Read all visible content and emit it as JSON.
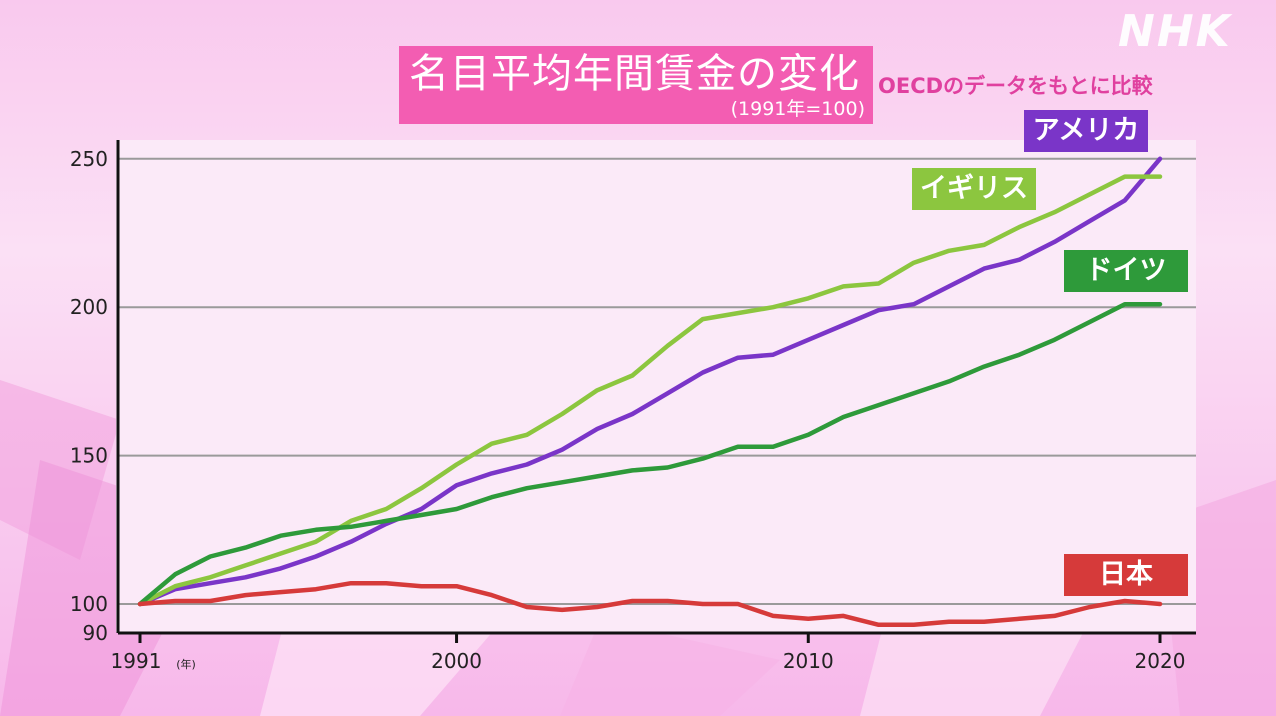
{
  "header": {
    "title": "名目平均年間賃金の変化",
    "subtitle": "(1991年=100)",
    "source": "OECDのデータをもとに比較",
    "logo": "NHK"
  },
  "colors": {
    "title_bg": "#f35db2",
    "usa": "#7a35c8",
    "uk": "#8cc63f",
    "germany": "#2e9a3a",
    "japan": "#d63a3a"
  },
  "chart_data": {
    "type": "line",
    "title": "名目平均年間賃金の変化",
    "subtitle": "(1991年=100)",
    "x_ticks": [
      "1991",
      "2000",
      "2010",
      "2020"
    ],
    "x_unit_label": "(年)",
    "y_ticks": [
      90,
      100,
      150,
      200,
      250
    ],
    "xlim": [
      1991,
      2021
    ],
    "ylim": [
      90,
      255
    ],
    "grid": true,
    "x": [
      1991,
      1992,
      1993,
      1994,
      1995,
      1996,
      1997,
      1998,
      1999,
      2000,
      2001,
      2002,
      2003,
      2004,
      2005,
      2006,
      2007,
      2008,
      2009,
      2010,
      2011,
      2012,
      2013,
      2014,
      2015,
      2016,
      2017,
      2018,
      2019,
      2020
    ],
    "series": [
      {
        "name": "アメリカ",
        "color": "#7a35c8",
        "values": [
          100,
          105,
          107,
          109,
          112,
          116,
          121,
          127,
          132,
          140,
          144,
          147,
          152,
          159,
          164,
          171,
          178,
          183,
          184,
          189,
          194,
          199,
          201,
          207,
          213,
          216,
          222,
          229,
          236,
          250
        ]
      },
      {
        "name": "イギリス",
        "color": "#8cc63f",
        "values": [
          100,
          106,
          109,
          113,
          117,
          121,
          128,
          132,
          139,
          147,
          154,
          157,
          164,
          172,
          177,
          187,
          196,
          198,
          200,
          203,
          207,
          208,
          215,
          219,
          221,
          227,
          232,
          238,
          244,
          244
        ]
      },
      {
        "name": "ドイツ",
        "color": "#2e9a3a",
        "values": [
          100,
          110,
          116,
          119,
          123,
          125,
          126,
          128,
          130,
          132,
          136,
          139,
          141,
          143,
          145,
          146,
          149,
          153,
          153,
          157,
          163,
          167,
          171,
          175,
          180,
          184,
          189,
          195,
          201,
          201
        ]
      },
      {
        "name": "日本",
        "color": "#d63a3a",
        "values": [
          100,
          101,
          101,
          103,
          104,
          105,
          107,
          107,
          106,
          106,
          103,
          99,
          98,
          99,
          101,
          101,
          100,
          100,
          96,
          95,
          96,
          93,
          93,
          94,
          94,
          95,
          96,
          99,
          101,
          100
        ]
      }
    ]
  }
}
